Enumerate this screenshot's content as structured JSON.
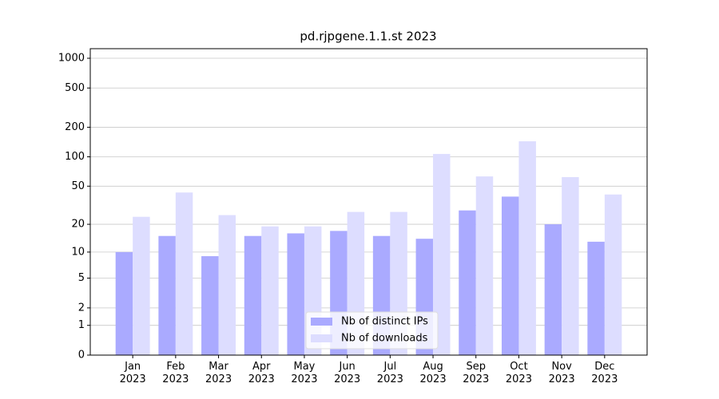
{
  "chart_data": {
    "type": "bar",
    "title": "pd.rjpgene.1.1.st 2023",
    "categories": [
      "Jan\n2023",
      "Feb\n2023",
      "Mar\n2023",
      "Apr\n2023",
      "May\n2023",
      "Jun\n2023",
      "Jul\n2023",
      "Aug\n2023",
      "Sep\n2023",
      "Oct\n2023",
      "Nov\n2023",
      "Dec\n2023"
    ],
    "series": [
      {
        "name": "Nb of distinct IPs",
        "color": "#aaaaff",
        "values": [
          10,
          15,
          9,
          15,
          16,
          17,
          15,
          14,
          28,
          39,
          20,
          13
        ]
      },
      {
        "name": "Nb of downloads",
        "color": "#ddddff",
        "values": [
          24,
          43,
          25,
          19,
          19,
          27,
          27,
          107,
          63,
          144,
          62,
          41
        ]
      }
    ],
    "yscale": "log1p",
    "ylim": [
      0,
      1250
    ],
    "yticks": [
      0,
      1,
      2,
      5,
      10,
      20,
      50,
      100,
      200,
      500,
      1000
    ],
    "grid": true,
    "legend": "lower center"
  }
}
